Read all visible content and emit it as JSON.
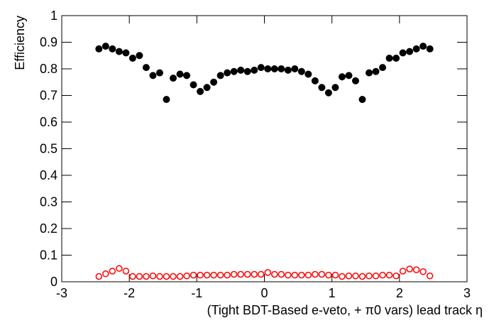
{
  "chart_data": {
    "type": "scatter",
    "x_label": "(Tight BDT-Based e-veto, +  π0 vars)  lead track  η",
    "y_label": "Efficiency",
    "xlim": [
      -3,
      3
    ],
    "ylim": [
      0,
      1
    ],
    "xticks": [
      -3,
      -2,
      -1,
      0,
      1,
      2,
      3
    ],
    "yticks": [
      0,
      0.1,
      0.2,
      0.3,
      0.4,
      0.5,
      0.6,
      0.7,
      0.8,
      0.9,
      1
    ],
    "x": [
      -2.45,
      -2.35,
      -2.25,
      -2.15,
      -2.05,
      -1.95,
      -1.85,
      -1.75,
      -1.65,
      -1.55,
      -1.45,
      -1.35,
      -1.25,
      -1.15,
      -1.05,
      -0.95,
      -0.85,
      -0.75,
      -0.65,
      -0.55,
      -0.45,
      -0.35,
      -0.25,
      -0.15,
      -0.05,
      0.05,
      0.15,
      0.25,
      0.35,
      0.45,
      0.55,
      0.65,
      0.75,
      0.85,
      0.95,
      1.05,
      1.15,
      1.25,
      1.35,
      1.45,
      1.55,
      1.65,
      1.75,
      1.85,
      1.95,
      2.05,
      2.15,
      2.25,
      2.35,
      2.45
    ],
    "series": [
      {
        "color": "#000000",
        "marker": "filled",
        "values": [
          0.875,
          0.885,
          0.875,
          0.865,
          0.86,
          0.84,
          0.85,
          0.805,
          0.775,
          0.785,
          0.685,
          0.765,
          0.78,
          0.775,
          0.74,
          0.715,
          0.73,
          0.75,
          0.775,
          0.785,
          0.79,
          0.795,
          0.79,
          0.795,
          0.805,
          0.8,
          0.8,
          0.8,
          0.795,
          0.8,
          0.79,
          0.78,
          0.755,
          0.73,
          0.71,
          0.73,
          0.77,
          0.775,
          0.755,
          0.685,
          0.785,
          0.79,
          0.805,
          0.84,
          0.84,
          0.86,
          0.865,
          0.875,
          0.885,
          0.875
        ]
      },
      {
        "color": "#ff0000",
        "marker": "open",
        "values": [
          0.02,
          0.03,
          0.04,
          0.05,
          0.04,
          0.02,
          0.02,
          0.02,
          0.022,
          0.02,
          0.02,
          0.02,
          0.02,
          0.022,
          0.025,
          0.025,
          0.025,
          0.025,
          0.025,
          0.025,
          0.028,
          0.028,
          0.028,
          0.028,
          0.028,
          0.035,
          0.028,
          0.028,
          0.025,
          0.025,
          0.025,
          0.025,
          0.028,
          0.028,
          0.025,
          0.025,
          0.02,
          0.022,
          0.022,
          0.02,
          0.022,
          0.022,
          0.025,
          0.025,
          0.022,
          0.04,
          0.048,
          0.045,
          0.038,
          0.022
        ]
      }
    ]
  }
}
